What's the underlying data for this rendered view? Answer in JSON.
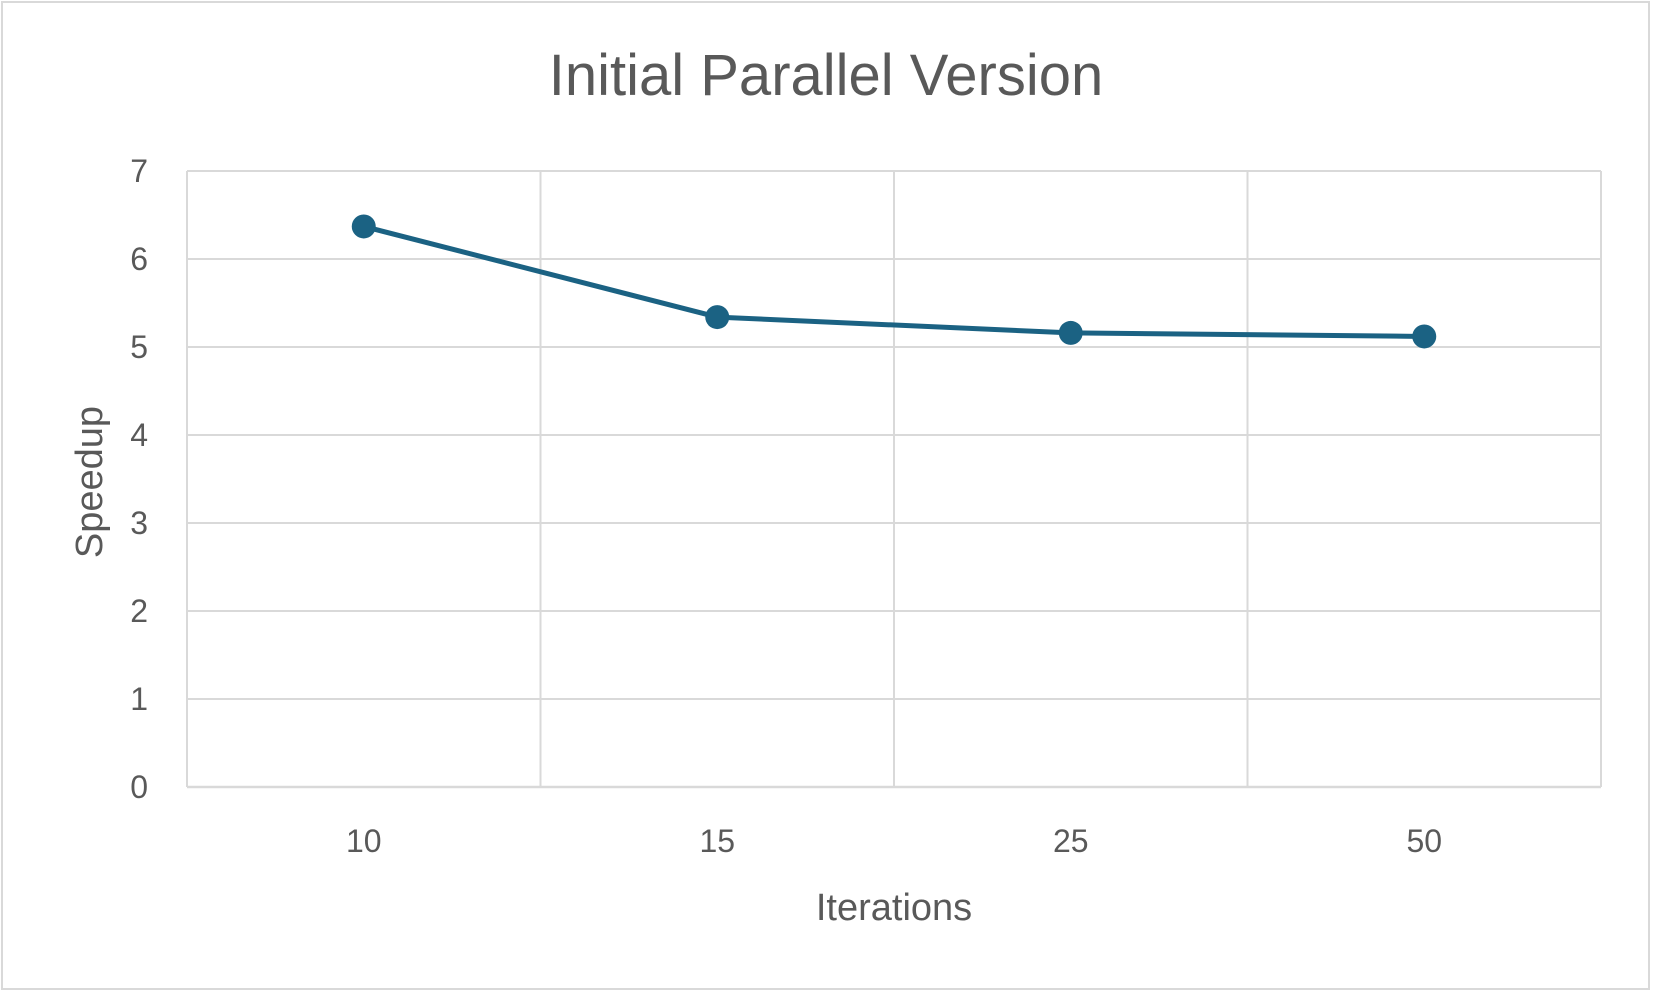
{
  "chart_data": {
    "type": "line",
    "title": "Initial Parallel Version",
    "xlabel": "Iterations",
    "ylabel": "Speedup",
    "categories": [
      "10",
      "15",
      "25",
      "50"
    ],
    "series": [
      {
        "values": [
          6.37,
          5.34,
          5.16,
          5.12
        ],
        "color": "#1b6283"
      }
    ],
    "ylim": [
      0,
      7
    ],
    "yticks": [
      "0",
      "1",
      "2",
      "3",
      "4",
      "5",
      "6",
      "7"
    ],
    "grid": true,
    "legend": "none",
    "colors": {
      "grid": "#d9d9d9",
      "text": "#595959",
      "border": "#d9d9d9"
    }
  }
}
